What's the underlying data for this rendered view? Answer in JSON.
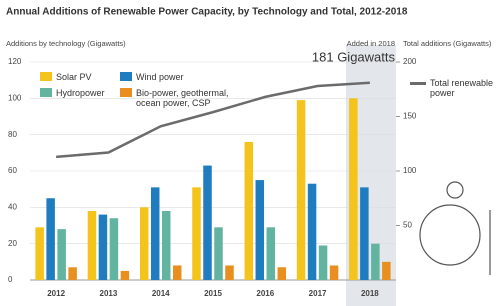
{
  "chart_data": {
    "type": "bar",
    "title": "Annual Additions of Renewable Power Capacity, by Technology and Total, 2012-2018",
    "y_label": "Additions by technology (Gigawatts)",
    "y2_label": "Total additions (Gigawatts)",
    "annotation": "Added in 2018",
    "annotation_value": "181 Gigawatts",
    "categories": [
      "2012",
      "2013",
      "2014",
      "2015",
      "2016",
      "2017",
      "2018"
    ],
    "series": [
      {
        "name": "Solar PV",
        "color": "#f4c31c",
        "values": [
          29,
          38,
          40,
          51,
          76,
          99,
          100
        ]
      },
      {
        "name": "Wind power",
        "color": "#1f7dbf",
        "values": [
          45,
          36,
          51,
          63,
          55,
          53,
          51
        ]
      },
      {
        "name": "Hydropower",
        "color": "#62b3a0",
        "values": [
          28,
          34,
          38,
          29,
          29,
          19,
          20
        ]
      },
      {
        "name": "Bio-power, geothermal, ocean power, CSP",
        "color": "#e88f1f",
        "values": [
          7,
          5,
          8,
          8,
          7,
          8,
          10
        ]
      },
      {
        "name": "Total renewable power",
        "color": "#6b6b6b",
        "type": "line",
        "axis": "y2",
        "values": [
          113,
          117,
          141,
          154,
          168,
          178,
          181
        ]
      }
    ],
    "ylim": [
      0,
      120
    ],
    "yticks": [
      0,
      20,
      40,
      60,
      80,
      100,
      120
    ],
    "y2lim": [
      0,
      200
    ],
    "y2ticks": [
      50,
      100,
      150,
      200
    ],
    "grid": true
  }
}
